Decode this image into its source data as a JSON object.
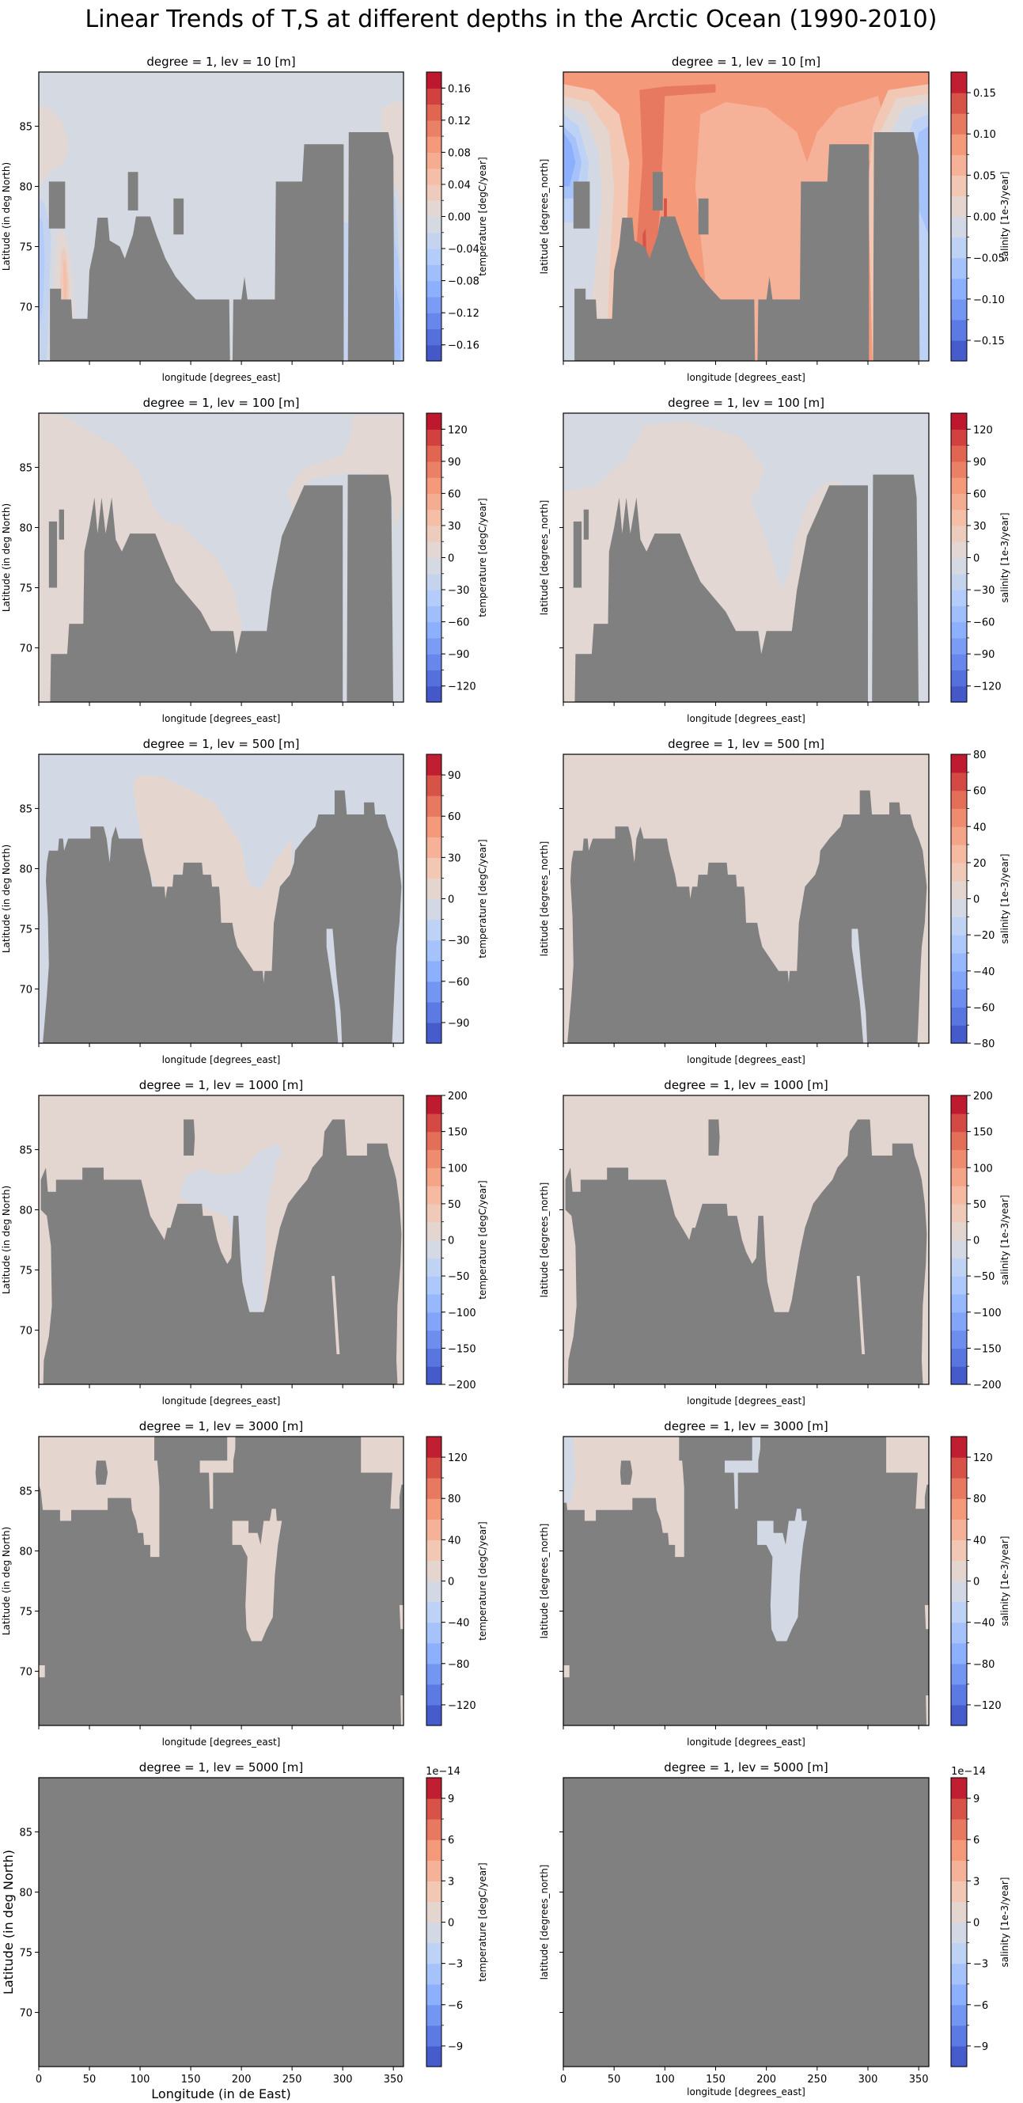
{
  "figure_title": "Linear Trends of T,S at different depths in the Arctic Ocean (1990-2010)",
  "colormap": "coolwarm",
  "land_color": "#808080",
  "chart_data": [
    {
      "type": "heatmap",
      "title": "degree = 1, lev = 10 [m]",
      "xlabel": "longitude [degrees_east]",
      "ylabel": "Latitude (in deg North)",
      "xlim": [
        0,
        360
      ],
      "ylim": [
        65.5,
        89.5
      ],
      "xticks": [
        0,
        50,
        100,
        150,
        200,
        250,
        300,
        350
      ],
      "yticks": [
        70,
        75,
        80,
        85
      ],
      "ytick_labels": [
        "70",
        "75",
        "80",
        "85"
      ],
      "colorbar": {
        "label": "temperature [degC/year]",
        "levels": {
          "min": -0.18,
          "max": 0.18,
          "step": 0.02
        },
        "ticks": [
          0.16,
          0.12,
          0.08,
          0.04,
          0,
          -0.04,
          -0.08,
          -0.12,
          -0.16
        ],
        "tick_labels": [
          "0.16",
          "0.12",
          "0.08",
          "0.04",
          "0.00",
          "−0.04",
          "−0.08",
          "−0.12",
          "−0.16"
        ]
      }
    },
    {
      "type": "heatmap",
      "title": "degree = 1, lev = 10 [m]",
      "xlabel": "longitude [degrees_east]",
      "ylabel": "latitude [degrees_north]",
      "xlim": [
        0,
        360
      ],
      "ylim": [
        65.5,
        89.5
      ],
      "xticks": [
        0,
        50,
        100,
        150,
        200,
        250,
        300,
        350
      ],
      "yticks": [
        70,
        75,
        80,
        85
      ],
      "colorbar": {
        "label": "salinity [1e-3/year]",
        "levels": {
          "min": -0.175,
          "max": 0.175,
          "step": 0.025
        },
        "ticks": [
          0.15,
          0.1,
          0.05,
          0,
          -0.05,
          -0.1,
          -0.15
        ],
        "tick_labels": [
          "0.15",
          "0.10",
          "0.05",
          "0.00",
          "−0.05",
          "−0.10",
          "−0.15"
        ]
      }
    },
    {
      "type": "heatmap",
      "title": "degree = 1, lev = 100 [m]",
      "xlabel": "longitude [degrees_east]",
      "ylabel": "Latitude (in deg North)",
      "xlim": [
        0,
        360
      ],
      "ylim": [
        65.5,
        89.5
      ],
      "xticks": [
        0,
        50,
        100,
        150,
        200,
        250,
        300,
        350
      ],
      "yticks": [
        70,
        75,
        80,
        85
      ],
      "ytick_labels": [
        "70",
        "75",
        "80",
        "85"
      ],
      "colorbar": {
        "label": "temperature [degC/year]",
        "levels": {
          "min": -135,
          "max": 135,
          "step": 15
        },
        "ticks": [
          120,
          90,
          60,
          30,
          0,
          -30,
          -60,
          -90,
          -120
        ],
        "tick_labels": [
          "120",
          "90",
          "60",
          "30",
          "0",
          "−30",
          "−60",
          "−90",
          "−120"
        ]
      }
    },
    {
      "type": "heatmap",
      "title": "degree = 1, lev = 100 [m]",
      "xlabel": "longitude [degrees_east]",
      "ylabel": "latitude [degrees_north]",
      "xlim": [
        0,
        360
      ],
      "ylim": [
        65.5,
        89.5
      ],
      "xticks": [
        0,
        50,
        100,
        150,
        200,
        250,
        300,
        350
      ],
      "yticks": [
        70,
        75,
        80,
        85
      ],
      "colorbar": {
        "label": "salinity [1e-3/year]",
        "levels": {
          "min": -135,
          "max": 135,
          "step": 15
        },
        "ticks": [
          120,
          90,
          60,
          30,
          0,
          -30,
          -60,
          -90,
          -120
        ],
        "tick_labels": [
          "120",
          "90",
          "60",
          "30",
          "0",
          "−30",
          "−60",
          "−90",
          "−120"
        ]
      }
    },
    {
      "type": "heatmap",
      "title": "degree = 1, lev = 500 [m]",
      "xlabel": "longitude [degrees_east]",
      "ylabel": "Latitude (in deg North)",
      "xlim": [
        0,
        360
      ],
      "ylim": [
        65.5,
        89.5
      ],
      "xticks": [
        0,
        50,
        100,
        150,
        200,
        250,
        300,
        350
      ],
      "yticks": [
        70,
        75,
        80,
        85
      ],
      "ytick_labels": [
        "70",
        "75",
        "80",
        "85"
      ],
      "colorbar": {
        "label": "temperature [degC/year]",
        "levels": {
          "min": -105,
          "max": 105,
          "step": 15
        },
        "ticks": [
          90,
          60,
          30,
          0,
          -30,
          -60,
          -90
        ],
        "tick_labels": [
          "90",
          "60",
          "30",
          "0",
          "−30",
          "−60",
          "−90"
        ]
      }
    },
    {
      "type": "heatmap",
      "title": "degree = 1, lev = 500 [m]",
      "xlabel": "longitude [degrees_east]",
      "ylabel": "latitude [degrees_north]",
      "xlim": [
        0,
        360
      ],
      "ylim": [
        65.5,
        89.5
      ],
      "xticks": [
        0,
        50,
        100,
        150,
        200,
        250,
        300,
        350
      ],
      "yticks": [
        70,
        75,
        80,
        85
      ],
      "colorbar": {
        "label": "salinity [1e-3/year]",
        "levels": {
          "min": -80,
          "max": 80,
          "step": 10
        },
        "ticks": [
          80,
          60,
          40,
          20,
          0,
          -20,
          -40,
          -60,
          -80
        ],
        "tick_labels": [
          "80",
          "60",
          "40",
          "20",
          "0",
          "−20",
          "−40",
          "−60",
          "−80"
        ]
      }
    },
    {
      "type": "heatmap",
      "title": "degree = 1, lev = 1000 [m]",
      "xlabel": "longitude [degrees_east]",
      "ylabel": "Latitude (in deg North)",
      "xlim": [
        0,
        360
      ],
      "ylim": [
        65.5,
        89.5
      ],
      "xticks": [
        0,
        50,
        100,
        150,
        200,
        250,
        300,
        350
      ],
      "yticks": [
        70,
        75,
        80,
        85
      ],
      "ytick_labels": [
        "70",
        "75",
        "80",
        "85"
      ],
      "colorbar": {
        "label": "temperature [degC/year]",
        "levels": {
          "min": -200,
          "max": 200,
          "step": 25
        },
        "ticks": [
          200,
          150,
          100,
          50,
          0,
          -50,
          -100,
          -150,
          -200
        ],
        "tick_labels": [
          "200",
          "150",
          "100",
          "50",
          "0",
          "−50",
          "−100",
          "−150",
          "−200"
        ]
      }
    },
    {
      "type": "heatmap",
      "title": "degree = 1, lev = 1000 [m]",
      "xlabel": "longitude [degrees_east]",
      "ylabel": "latitude [degrees_north]",
      "xlim": [
        0,
        360
      ],
      "ylim": [
        65.5,
        89.5
      ],
      "xticks": [
        0,
        50,
        100,
        150,
        200,
        250,
        300,
        350
      ],
      "yticks": [
        70,
        75,
        80,
        85
      ],
      "colorbar": {
        "label": "salinity [1e-3/year]",
        "levels": {
          "min": -200,
          "max": 200,
          "step": 25
        },
        "ticks": [
          200,
          150,
          100,
          50,
          0,
          -50,
          -100,
          -150,
          -200
        ],
        "tick_labels": [
          "200",
          "150",
          "100",
          "50",
          "0",
          "−50",
          "−100",
          "−150",
          "−200"
        ]
      }
    },
    {
      "type": "heatmap",
      "title": "degree = 1, lev = 3000 [m]",
      "xlabel": "longitude [degrees_east]",
      "ylabel": "Latitude (in deg North)",
      "xlim": [
        0,
        360
      ],
      "ylim": [
        65.5,
        89.5
      ],
      "xticks": [
        0,
        50,
        100,
        150,
        200,
        250,
        300,
        350
      ],
      "yticks": [
        70,
        75,
        80,
        85
      ],
      "ytick_labels": [
        "70",
        "75",
        "80",
        "85"
      ],
      "colorbar": {
        "label": "temperature [degC/year]",
        "levels": {
          "min": -140,
          "max": 140,
          "step": 20
        },
        "ticks": [
          120,
          80,
          40,
          0,
          -40,
          -80,
          -120
        ],
        "tick_labels": [
          "120",
          "80",
          "40",
          "0",
          "−40",
          "−80",
          "−120"
        ]
      }
    },
    {
      "type": "heatmap",
      "title": "degree = 1, lev = 3000 [m]",
      "xlabel": "longitude [degrees_east]",
      "ylabel": "latitude [degrees_north]",
      "xlim": [
        0,
        360
      ],
      "ylim": [
        65.5,
        89.5
      ],
      "xticks": [
        0,
        50,
        100,
        150,
        200,
        250,
        300,
        350
      ],
      "yticks": [
        70,
        75,
        80,
        85
      ],
      "colorbar": {
        "label": "salinity [1e-3/year]",
        "levels": {
          "min": -140,
          "max": 140,
          "step": 20
        },
        "ticks": [
          120,
          80,
          40,
          0,
          -40,
          -80,
          -120
        ],
        "tick_labels": [
          "120",
          "80",
          "40",
          "0",
          "−40",
          "−80",
          "−120"
        ]
      }
    },
    {
      "type": "heatmap",
      "title": "degree = 1, lev = 5000 [m]",
      "xlabel": "Longitude (in de East)",
      "ylabel": "Latitude (in deg North)",
      "xlim": [
        0,
        360
      ],
      "ylim": [
        65.5,
        89.5
      ],
      "xticks": [
        0,
        50,
        100,
        150,
        200,
        250,
        300,
        350
      ],
      "xtick_labels": [
        "0",
        "50",
        "100",
        "150",
        "200",
        "250",
        "300",
        "350"
      ],
      "yticks": [
        70,
        75,
        80,
        85
      ],
      "ytick_labels": [
        "70",
        "75",
        "80",
        "85"
      ],
      "colorbar": {
        "label": "temperature [degC/year]",
        "levels": {
          "min": -10.5,
          "max": 10.5,
          "step": 1.5
        },
        "ticks": [
          9,
          6,
          3,
          0,
          -3,
          -6,
          -9
        ],
        "tick_labels": [
          "9",
          "6",
          "3",
          "0",
          "−3",
          "−6",
          "−9"
        ],
        "offset_text": "1e−14"
      }
    },
    {
      "type": "heatmap",
      "title": "degree = 1, lev = 5000 [m]",
      "xlabel": "longitude [degrees_east]",
      "ylabel": "latitude [degrees_north]",
      "xlim": [
        0,
        360
      ],
      "ylim": [
        65.5,
        89.5
      ],
      "xticks": [
        0,
        50,
        100,
        150,
        200,
        250,
        300,
        350
      ],
      "xtick_labels": [
        "0",
        "50",
        "100",
        "150",
        "200",
        "250",
        "300",
        "350"
      ],
      "yticks": [
        70,
        75,
        80,
        85
      ],
      "colorbar": {
        "label": "salinity [1e-3/year]",
        "levels": {
          "min": -10.5,
          "max": 10.5,
          "step": 1.5
        },
        "ticks": [
          9,
          6,
          3,
          0,
          -3,
          -6,
          -9
        ],
        "tick_labels": [
          "9",
          "6",
          "3",
          "0",
          "−3",
          "−6",
          "−9"
        ],
        "offset_text": "1e−14"
      }
    }
  ]
}
